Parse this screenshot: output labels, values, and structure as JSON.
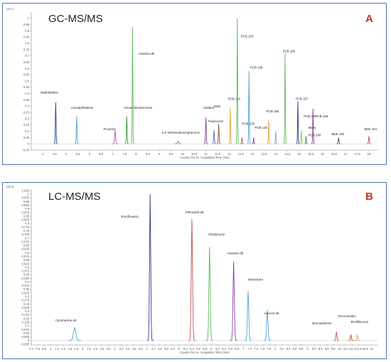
{
  "chart_data": [
    {
      "type": "line",
      "title": "GC-MS/MS",
      "panel_letter": "A",
      "y_multiplier": "x10 1",
      "xlabel": "Counts (%) vs. Acquisition Time (min)",
      "xlim": [
        3.5,
        18.4
      ],
      "ylim": [
        -0.05,
        1.05
      ],
      "xticks": [
        "4",
        "4.5",
        "5",
        "5.5",
        "6",
        "6.5",
        "7",
        "7.5",
        "8",
        "8.5",
        "9",
        "9.5",
        "10",
        "10.5",
        "11",
        "11.5",
        "12",
        "12.5",
        "13",
        "13.5",
        "14",
        "14.5",
        "15",
        "15.5",
        "16",
        "16.5",
        "17",
        "17.5",
        "18"
      ],
      "yticks": [
        "1",
        "0.95",
        "0.9",
        "0.85",
        "0.8",
        "0.75",
        "0.7",
        "0.65",
        "0.6",
        "0.55",
        "0.5",
        "0.45",
        "0.4",
        "0.35",
        "0.3",
        "0.25",
        "0.2",
        "0.15",
        "0.1",
        "0.05",
        "0",
        "-0.05"
      ],
      "peaks": [
        {
          "label": "Naphthalene",
          "rt": 4.55,
          "height": 0.33,
          "width": 0.03,
          "color": "#2c3a8c",
          "label_x": 3.9,
          "label_y": 0.4
        },
        {
          "label": "Acenaphthalene",
          "rt": 5.45,
          "height": 0.22,
          "width": 0.03,
          "color": "#4fa3d8",
          "label_x": 5.2,
          "label_y": 0.28
        },
        {
          "label": "Fluorene",
          "rt": 7.1,
          "height": 0.11,
          "width": 0.04,
          "color": "#c24fb0",
          "label_x": 6.6,
          "label_y": 0.11
        },
        {
          "label": "Hexachlorobenzene",
          "rt": 7.6,
          "height": 0.22,
          "width": 0.03,
          "color": "#3b8f3b",
          "label_x": 7.5,
          "label_y": 0.28
        },
        {
          "label": "Atrazine-d5",
          "rt": 7.85,
          "height": 0.93,
          "width": 0.025,
          "color": "#5cb85c",
          "label_x": 8.1,
          "label_y": 0.71
        },
        {
          "label": "4,4'-Dichlorobenzophenone",
          "rt": 9.8,
          "height": 0.02,
          "width": 0.05,
          "color": "#7f7f7f",
          "label_x": 9.1,
          "label_y": 0.08
        },
        {
          "label": "Dieldrin",
          "rt": 11.0,
          "height": 0.21,
          "width": 0.03,
          "color": "#8a3fa0",
          "label_x": 10.9,
          "label_y": 0.28
        },
        {
          "label": "DDE",
          "rt": 11.55,
          "height": 0.16,
          "width": 0.03,
          "color": "#a0522d",
          "label_x": 11.35,
          "label_y": 0.29
        },
        {
          "label": "Fludioxonil",
          "rt": 11.35,
          "height": 0.11,
          "width": 0.03,
          "color": "#4a6fc4",
          "label_x": 11.1,
          "label_y": 0.17
        },
        {
          "label": "PCB 118",
          "rt": 12.05,
          "height": 0.29,
          "width": 0.025,
          "color": "#e8a23b",
          "label_x": 11.95,
          "label_y": 0.35
        },
        {
          "label": "PCB 153",
          "rt": 12.35,
          "height": 1.0,
          "width": 0.025,
          "color": "#5cb85c",
          "label_x": 12.5,
          "label_y": 0.85
        },
        {
          "label": "PCB 105",
          "rt": 12.55,
          "height": 0.05,
          "width": 0.025,
          "color": "#c24f4f",
          "label_x": 12.55,
          "label_y": 0.15
        },
        {
          "label": "PCB 138",
          "rt": 12.85,
          "height": 0.58,
          "width": 0.025,
          "color": "#4fa3d8",
          "label_x": 12.9,
          "label_y": 0.6
        },
        {
          "label": "PCB 126",
          "rt": 13.05,
          "height": 0.05,
          "width": 0.025,
          "color": "#8a3fa0",
          "label_x": 13.1,
          "label_y": 0.12
        },
        {
          "label": "PCB 156",
          "rt": 13.7,
          "height": 0.19,
          "width": 0.025,
          "color": "#e8a23b",
          "label_x": 13.6,
          "label_y": 0.25
        },
        {
          "label": "PCB 180",
          "rt": 14.4,
          "height": 0.72,
          "width": 0.025,
          "color": "#5cb85c",
          "label_x": 14.3,
          "label_y": 0.73
        },
        {
          "label": "PCB 157",
          "rt": 14.0,
          "height": 0.1,
          "width": 0.025,
          "color": "#7fa8d8",
          "label_x": 14.85,
          "label_y": 0.35
        },
        {
          "label": "PCB 200",
          "rt": 15.1,
          "height": 0.11,
          "width": 0.025,
          "color": "#8cc63f",
          "label_x": 15.2,
          "label_y": 0.21
        },
        {
          "label": "PCB 189",
          "rt": 15.3,
          "height": 0.06,
          "width": 0.025,
          "color": "#3b8f3b",
          "label_x": 15.4,
          "label_y": 0.06
        },
        {
          "label": "Mirex",
          "rt": 14.95,
          "height": 0.34,
          "width": 0.025,
          "color": "#2c3a8c",
          "label_x": 15.4,
          "label_y": 0.12
        },
        {
          "label": "PCB 169",
          "rt": 15.6,
          "height": 0.28,
          "width": 0.025,
          "color": "#8a3fa0",
          "label_x": 15.7,
          "label_y": 0.21
        },
        {
          "label": "BDE 100",
          "rt": 16.7,
          "height": 0.05,
          "width": 0.03,
          "color": "#555555",
          "label_x": 16.4,
          "label_y": 0.07
        },
        {
          "label": "BDE 153",
          "rt": 18.0,
          "height": 0.06,
          "width": 0.03,
          "color": "#c24f4f",
          "label_x": 17.8,
          "label_y": 0.11
        }
      ]
    },
    {
      "type": "line",
      "title": "LC-MS/MS",
      "panel_letter": "B",
      "y_multiplier": "x10 5",
      "xlabel": "Counts (%) vs. Acquisition Time (min)",
      "xlim": [
        0.4,
        11.2
      ],
      "ylim": [
        -0.03,
        1.03
      ],
      "xticks": [
        "0.4",
        "0.6",
        "0.8",
        "1",
        "1.2",
        "1.4",
        "1.6",
        "1.8",
        "2",
        "2.2",
        "2.4",
        "2.6",
        "2.8",
        "3",
        "3.2",
        "3.4",
        "3.6",
        "3.8",
        "4",
        "4.2",
        "4.4",
        "4.6",
        "4.8",
        "5",
        "5.2",
        "5.4",
        "5.6",
        "5.8",
        "6",
        "6.2",
        "6.4",
        "6.6",
        "6.8",
        "7",
        "7.2",
        "7.4",
        "7.6",
        "7.8",
        "8",
        "8.2",
        "8.4",
        "8.6",
        "8.8",
        "9",
        "9.2",
        "9.4",
        "9.6",
        "9.8",
        "10",
        "10.2",
        "10.4",
        "10.6",
        "10.8",
        "11"
      ],
      "yticks": [
        "1.025",
        "1",
        "0.975",
        "0.95",
        "0.925",
        "0.9",
        "0.875",
        "0.85",
        "0.825",
        "0.8",
        "0.775",
        "0.75",
        "0.725",
        "0.7",
        "0.675",
        "0.65",
        "0.625",
        "0.6",
        "0.575",
        "0.55",
        "0.525",
        "0.5",
        "0.475",
        "0.45",
        "0.425",
        "0.4",
        "0.375",
        "0.35",
        "0.325",
        "0.3",
        "0.275",
        "0.25",
        "0.225",
        "0.2",
        "0.175",
        "0.15",
        "0.125",
        "0.1",
        "0.075",
        "0.05",
        "0.025",
        "0",
        "-0.025"
      ],
      "peaks": [
        {
          "label": "Cyromazine-d4",
          "rt": 1.75,
          "height": 0.09,
          "width": 0.07,
          "color": "#4fa3d8",
          "label_x": 1.15,
          "label_y": 0.13
        },
        {
          "label": "Enrofloxacin",
          "rt": 4.1,
          "height": 1.0,
          "width": 0.035,
          "color": "#2c3a8c",
          "label_x": 3.2,
          "label_y": 0.84
        },
        {
          "label": "Pirimicarb-d6",
          "rt": 5.4,
          "height": 0.83,
          "width": 0.04,
          "color": "#c24f4f",
          "label_x": 5.2,
          "label_y": 0.87
        },
        {
          "label": "Clindamycin",
          "rt": 5.95,
          "height": 0.64,
          "width": 0.04,
          "color": "#5cb85c",
          "label_x": 5.9,
          "label_y": 0.72
        },
        {
          "label": "Atrazine-d5",
          "rt": 6.7,
          "height": 0.54,
          "width": 0.04,
          "color": "#8a3fa0",
          "label_x": 6.5,
          "label_y": 0.59
        },
        {
          "label": "Meloxicam",
          "rt": 7.15,
          "height": 0.34,
          "width": 0.04,
          "color": "#4fa3d8",
          "label_x": 7.15,
          "label_y": 0.41
        },
        {
          "label": "Linuron-d6",
          "rt": 7.75,
          "height": 0.21,
          "width": 0.04,
          "color": "#4fa3d8",
          "label_x": 7.65,
          "label_y": 0.18
        },
        {
          "label": "Bromadiolone",
          "rt": 9.9,
          "height": 0.06,
          "width": 0.03,
          "color": "#c24f4f",
          "label_x": 9.15,
          "label_y": 0.11
        },
        {
          "label": "Flocoumafen",
          "rt": 10.35,
          "height": 0.04,
          "width": 0.03,
          "color": "#a0522d",
          "label_x": 9.95,
          "label_y": 0.16
        },
        {
          "label": "Brodifacoum",
          "rt": 10.55,
          "height": 0.04,
          "width": 0.03,
          "color": "#e8a23b",
          "label_x": 10.35,
          "label_y": 0.12
        }
      ]
    }
  ]
}
